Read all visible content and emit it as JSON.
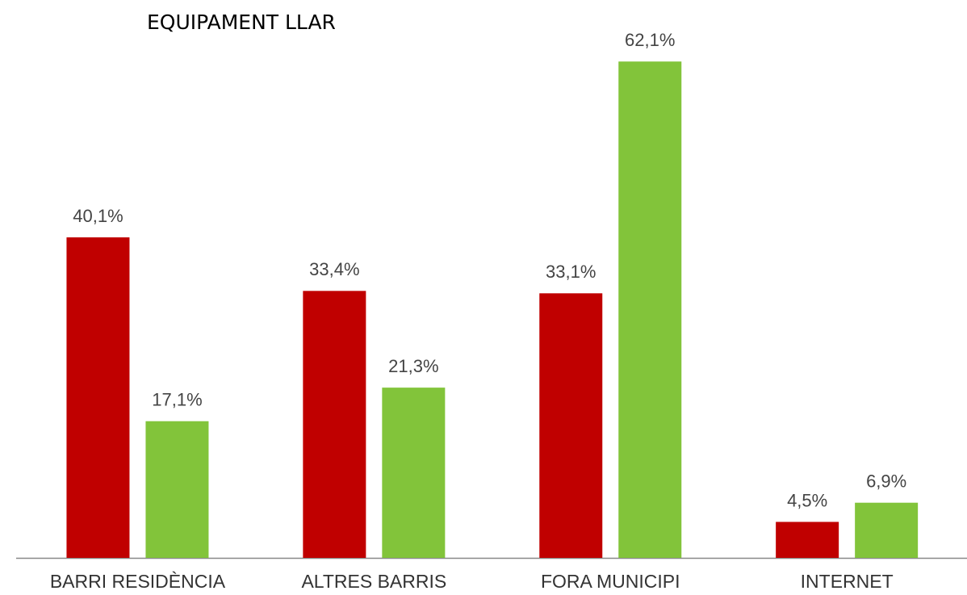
{
  "chart_data": {
    "type": "bar",
    "title": "EQUIPAMENT LLAR",
    "categories": [
      "BARRI RESIDÈNCIA",
      "ALTRES BARRIS",
      "FORA MUNICIPI",
      "INTERNET"
    ],
    "series": [
      {
        "color": "#c00000",
        "values": [
          40.1,
          33.4,
          33.1,
          4.5
        ],
        "value_labels": [
          "40,1%",
          "33,4%",
          "33,1%",
          "4,5%"
        ]
      },
      {
        "color": "#82c43a",
        "values": [
          17.1,
          21.3,
          62.1,
          6.9
        ],
        "value_labels": [
          "17,1%",
          "21,3%",
          "62,1%",
          "6,9%"
        ]
      }
    ]
  }
}
